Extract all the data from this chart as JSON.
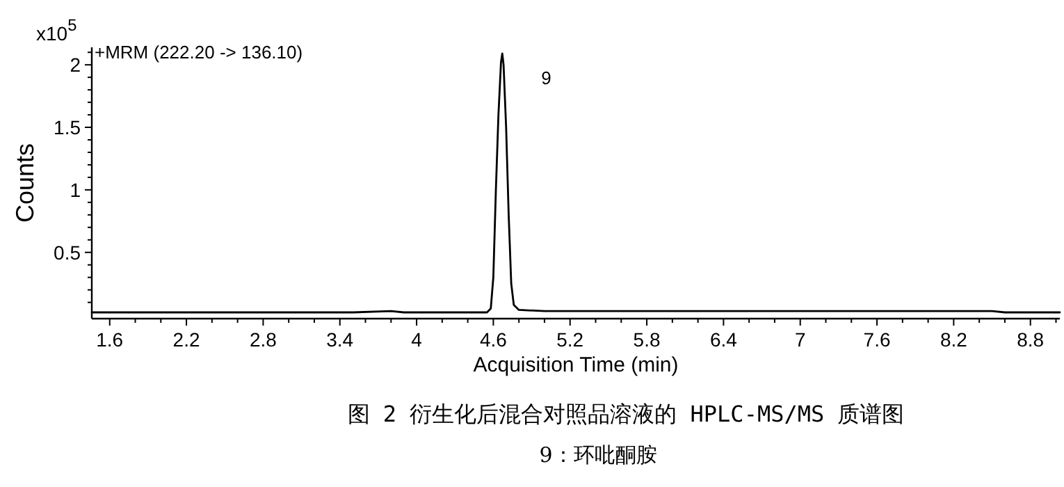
{
  "chart_data": {
    "type": "line",
    "title": "图 2 衍生化后混合对照品溶液的 HPLC-MS/MS 质谱图",
    "subtitle": "9：环吡酮胺",
    "xlabel": "Acquisition Time (min)",
    "ylabel": "Counts",
    "annotations": [
      "x10$^{5}$",
      "+MRM (222.20 -> 136.10)",
      {
        "text": "9",
        "x": 4.67,
        "y": 2.09
      }
    ],
    "series": [
      {
        "color": "#000000",
        "x": [
          1.46,
          2.5,
          3.5,
          3.8,
          3.9,
          4.3,
          4.55,
          4.58,
          4.6,
          4.62,
          4.64,
          4.66,
          4.67,
          4.68,
          4.7,
          4.72,
          4.74,
          4.76,
          4.8,
          5.0,
          6.0,
          8.5,
          8.6,
          9.03
        ],
        "values": [
          0.02,
          0.02,
          0.02,
          0.03,
          0.02,
          0.02,
          0.02,
          0.05,
          0.3,
          1.0,
          1.6,
          2.02,
          2.09,
          2.0,
          1.5,
          0.8,
          0.25,
          0.08,
          0.04,
          0.03,
          0.03,
          0.03,
          0.02,
          0.02
        ]
      }
    ],
    "xlim": [
      1.46,
      9.03
    ],
    "ylim": [
      -0.03,
      2.14
    ],
    "xticks": [
      1.6,
      {
        "value": 1.8,
        "label": null
      },
      {
        "value": 2.0,
        "label": null
      },
      2.2,
      {
        "value": 2.4,
        "label": null
      },
      {
        "value": 2.6,
        "label": null
      },
      2.8,
      {
        "value": 3.0,
        "label": null
      },
      {
        "value": 3.2,
        "label": null
      },
      3.4,
      {
        "value": 3.6,
        "label": null
      },
      {
        "value": 3.8,
        "label": null
      },
      4,
      {
        "value": 4.2,
        "label": null
      },
      {
        "value": 4.4,
        "label": null
      },
      4.6,
      {
        "value": 4.8,
        "label": null
      },
      {
        "value": 5.0,
        "label": null
      },
      5.2,
      {
        "value": 5.4,
        "label": null
      },
      {
        "value": 5.6,
        "label": null
      },
      5.8,
      {
        "value": 6.0,
        "label": null
      },
      {
        "value": 6.2,
        "label": null
      },
      6.4,
      {
        "value": 6.6,
        "label": null
      },
      {
        "value": 6.8,
        "label": null
      },
      7,
      {
        "value": 7.2,
        "label": null
      },
      {
        "value": 7.4,
        "label": null
      },
      7.6,
      {
        "value": 7.8,
        "label": null
      },
      {
        "value": 8.0,
        "label": null
      },
      8.2,
      {
        "value": 8.4,
        "label": null
      },
      {
        "value": 8.6,
        "label": null
      },
      8.8,
      {
        "value": 9.0,
        "label": null
      }
    ],
    "yticks": [
      {
        "value": 0.1,
        "label": null
      },
      {
        "value": 0.2,
        "label": null
      },
      {
        "value": 0.3,
        "label": null
      },
      {
        "value": 0.4,
        "label": null
      },
      0.5,
      {
        "value": 0.6,
        "label": null
      },
      {
        "value": 0.7,
        "label": null
      },
      {
        "value": 0.8,
        "label": null
      },
      {
        "value": 0.9,
        "label": null
      },
      1,
      {
        "value": 1.1,
        "label": null
      },
      {
        "value": 1.2,
        "label": null
      },
      {
        "value": 1.3,
        "label": null
      },
      {
        "value": 1.4,
        "label": null
      },
      1.5,
      {
        "value": 1.6,
        "label": null
      },
      {
        "value": 1.7,
        "label": null
      },
      {
        "value": 1.8,
        "label": null
      },
      {
        "value": 1.9,
        "label": null
      },
      2,
      {
        "value": 2.1,
        "label": null
      }
    ],
    "grid": false,
    "marker": "none",
    "line_style": "solid"
  }
}
